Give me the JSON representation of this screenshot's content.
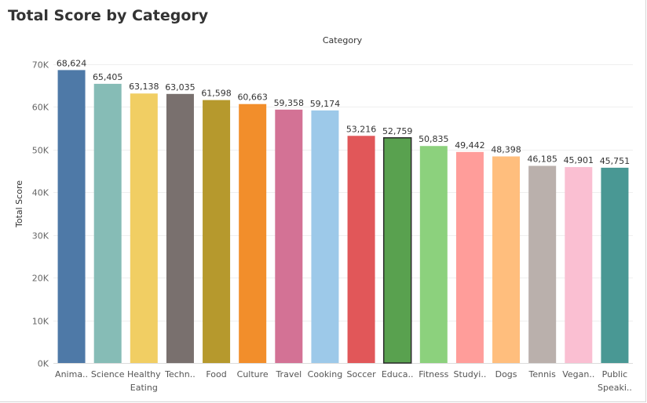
{
  "chart_data": {
    "type": "bar",
    "title": "Total Score by Category",
    "xlabel": "Category",
    "ylabel": "Total Score",
    "ylim": [
      0,
      72000
    ],
    "yticks": [
      0,
      10000,
      20000,
      30000,
      40000,
      50000,
      60000,
      70000
    ],
    "ytick_labels": [
      "0K",
      "10K",
      "20K",
      "30K",
      "40K",
      "50K",
      "60K",
      "70K"
    ],
    "grid": true,
    "categories": [
      "Anima..",
      "Science",
      "Healthy Eating",
      "Techn..",
      "Food",
      "Culture",
      "Travel",
      "Cooking",
      "Soccer",
      "Educa..",
      "Fitness",
      "Studyi..",
      "Dogs",
      "Tennis",
      "Vegan..",
      "Public Speaki.."
    ],
    "values": [
      68624,
      65405,
      63138,
      63035,
      61598,
      60663,
      59358,
      59174,
      53216,
      52759,
      50835,
      49442,
      48398,
      46185,
      45901,
      45751
    ],
    "value_labels": [
      "68,624",
      "65,405",
      "63,138",
      "63,035",
      "61,598",
      "60,663",
      "59,358",
      "59,174",
      "53,216",
      "52,759",
      "50,835",
      "49,442",
      "48,398",
      "46,185",
      "45,901",
      "45,751"
    ],
    "colors": [
      "#4e79a7",
      "#86bcb6",
      "#f1ce63",
      "#79706e",
      "#b6992d",
      "#f28e2b",
      "#d37295",
      "#9dc9e9",
      "#e15759",
      "#59a14f",
      "#8cd17d",
      "#ff9d9a",
      "#ffbe7d",
      "#bab0ac",
      "#fabfd2",
      "#499894"
    ],
    "highlighted_index": 9,
    "highlight_stroke": "#2b2b2b"
  }
}
